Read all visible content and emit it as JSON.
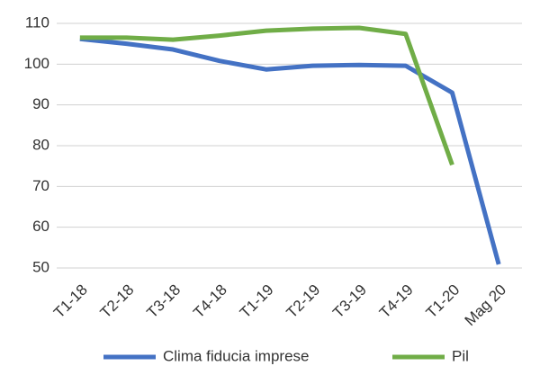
{
  "chart_data": {
    "type": "line",
    "categories": [
      "T1-18",
      "T2-18",
      "T3-18",
      "T4-18",
      "T1-19",
      "T2-19",
      "T3-19",
      "T4-19",
      "T1-20",
      "Mag 20"
    ],
    "series": [
      {
        "name": "Clima fiducia imprese",
        "color": "#4472c4",
        "values": [
          106.2,
          105,
          103.6,
          100.8,
          98.7,
          99.6,
          99.8,
          99.6,
          93,
          50.9
        ]
      },
      {
        "name": "Pil",
        "color": "#70ad47",
        "values": [
          106.5,
          106.5,
          106,
          107,
          108.2,
          108.7,
          108.9,
          107.4,
          75.3,
          null
        ]
      }
    ],
    "ylim": [
      50,
      110
    ],
    "yticks": [
      50,
      60,
      70,
      80,
      90,
      100,
      110
    ],
    "grid": true,
    "legend": "bottom"
  }
}
